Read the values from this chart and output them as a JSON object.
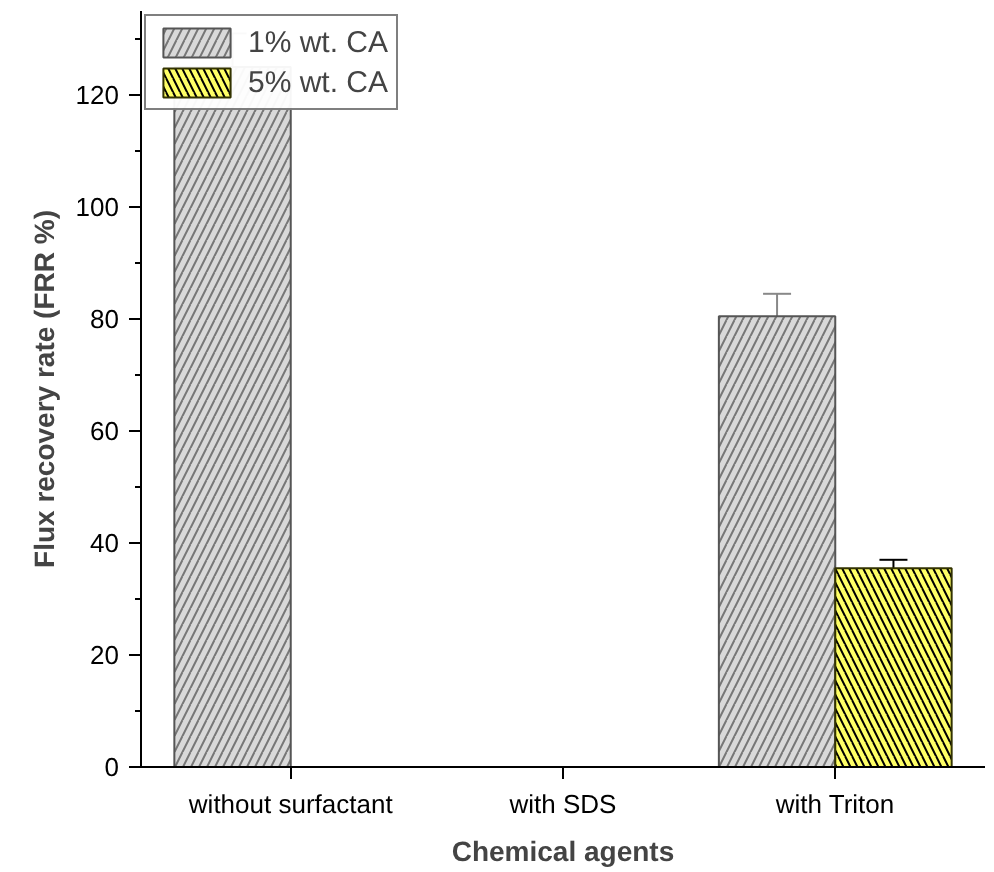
{
  "chart_data": {
    "type": "bar",
    "xlabel": "Chemical agents",
    "ylabel": "Flux recovery rate (FRR %)",
    "categories": [
      "without surfactant",
      "with SDS",
      "with Triton"
    ],
    "series": [
      {
        "name": "1% wt. CA",
        "color": "#d9d9d9",
        "values": [
          125,
          null,
          80.5
        ],
        "errors": [
          6,
          null,
          4
        ]
      },
      {
        "name": "5% wt. CA",
        "color": "#ffff66",
        "values": [
          null,
          null,
          35.5
        ],
        "errors": [
          null,
          null,
          1.5
        ]
      }
    ],
    "ylim": [
      0,
      135
    ],
    "yticks": [
      0,
      {
        "value": 10,
        "label": null
      },
      20,
      {
        "value": 30,
        "label": null
      },
      40,
      {
        "value": 50,
        "label": null
      },
      60,
      {
        "value": 70,
        "label": null
      },
      80,
      {
        "value": 90,
        "label": null
      },
      100,
      {
        "value": 110,
        "label": null
      },
      120,
      {
        "value": 130,
        "label": null
      }
    ],
    "grid": false,
    "legend": "top left"
  }
}
